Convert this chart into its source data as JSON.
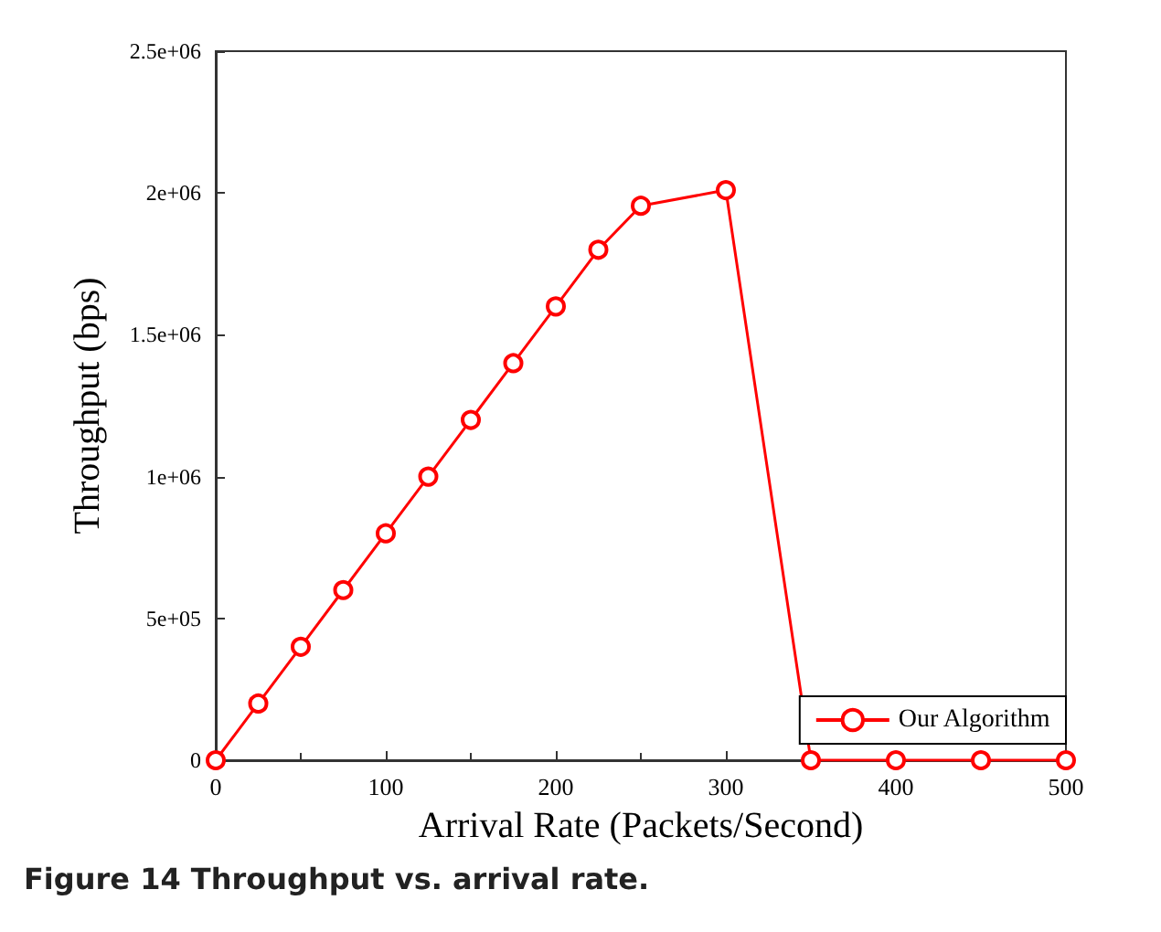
{
  "chart_data": {
    "type": "line",
    "title": "Figure 14 Throughput vs. arrival rate.",
    "xlabel": "Arrival Rate (Packets/Second)",
    "ylabel": "Throughput (bps)",
    "x": [
      0,
      25,
      50,
      75,
      100,
      125,
      150,
      175,
      200,
      225,
      250,
      300,
      350,
      400,
      450,
      500
    ],
    "series": [
      {
        "name": "Our Algorithm",
        "color": "#ff0000",
        "values": [
          0,
          200000,
          400000,
          600000,
          800000,
          1000000,
          1200000,
          1400000,
          1600000,
          1800000,
          1955000,
          2010000,
          0,
          0,
          0,
          0
        ]
      }
    ],
    "xlim": [
      0,
      500
    ],
    "xticks": [
      0,
      100,
      200,
      300,
      400,
      500
    ],
    "ylim": [
      0,
      2500000
    ],
    "yticks": [
      {
        "value": 0,
        "label": "0"
      },
      {
        "value": 500000,
        "label": "5e+05"
      },
      {
        "value": 1000000,
        "label": "1e+06"
      },
      {
        "value": 1500000,
        "label": "1.5e+06"
      },
      {
        "value": 2000000,
        "label": "2e+06"
      },
      {
        "value": 2500000,
        "label": "2.5e+06"
      }
    ],
    "grid": false,
    "legend": "bottom right",
    "marker": "circle",
    "line_style": "solid"
  }
}
